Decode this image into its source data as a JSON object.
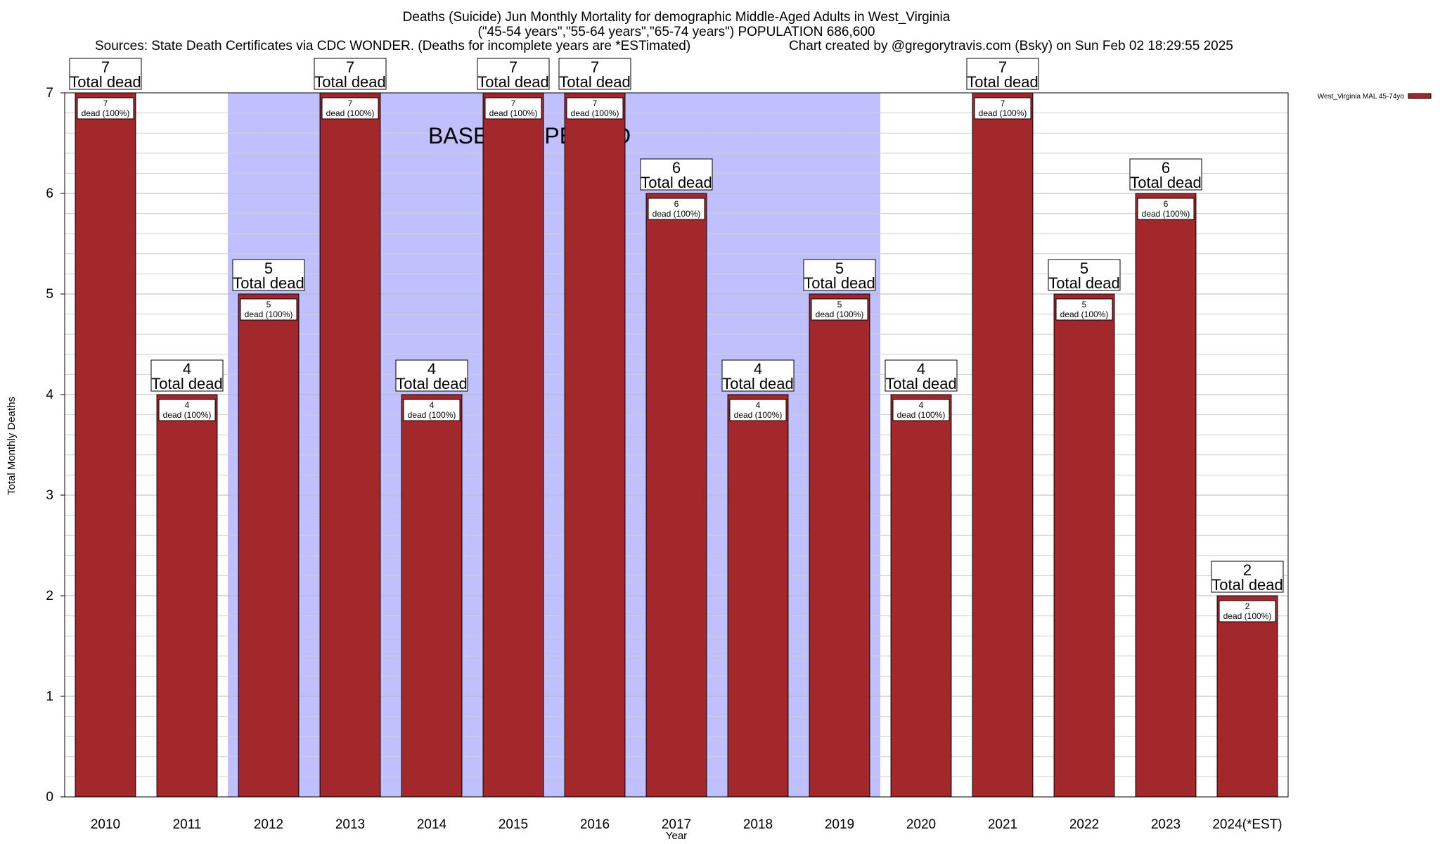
{
  "chart_data": {
    "type": "bar",
    "title": "Deaths (Suicide) Jun Monthly Mortality for demographic Middle-Aged Adults in West_Virginia",
    "subtitle": "(\"45-54 years\",\"55-64 years\",\"65-74 years\") POPULATION 686,600",
    "sources": "Sources: State Death Certificates via CDC WONDER. (Deaths for incomplete years are *ESTimated)",
    "credit": "Chart created by @gregorytravis.com (Bsky) on Sun Feb 02 18:29:55 2025",
    "xlabel": "Year",
    "ylabel": "Total Monthly Deaths",
    "categories": [
      "2010",
      "2011",
      "2012",
      "2013",
      "2014",
      "2015",
      "2016",
      "2017",
      "2018",
      "2019",
      "2020",
      "2021",
      "2022",
      "2023",
      "2024(*EST)"
    ],
    "series": [
      {
        "name": "West_Virginia MAL 45-74yo",
        "color": "#a3282b",
        "values": [
          7,
          4,
          5,
          7,
          4,
          7,
          7,
          6,
          4,
          5,
          4,
          7,
          5,
          6,
          2
        ]
      }
    ],
    "ylim": [
      0,
      7
    ],
    "yticks": [
      "0",
      "1",
      "2",
      "3",
      "4",
      "5",
      "6",
      "7"
    ],
    "grid": true,
    "legend_position": "top-right",
    "baseline": {
      "label": "BASELINE PERIOD",
      "start": "2012",
      "end": "2019",
      "color": "#c0c0ff"
    },
    "annotations": {
      "total_label": "Total dead",
      "bar_values": [
        "7",
        "4",
        "5",
        "7",
        "4",
        "7",
        "7",
        "6",
        "4",
        "5",
        "4",
        "7",
        "5",
        "6",
        "2"
      ],
      "bar_label": "dead (100%)"
    }
  }
}
